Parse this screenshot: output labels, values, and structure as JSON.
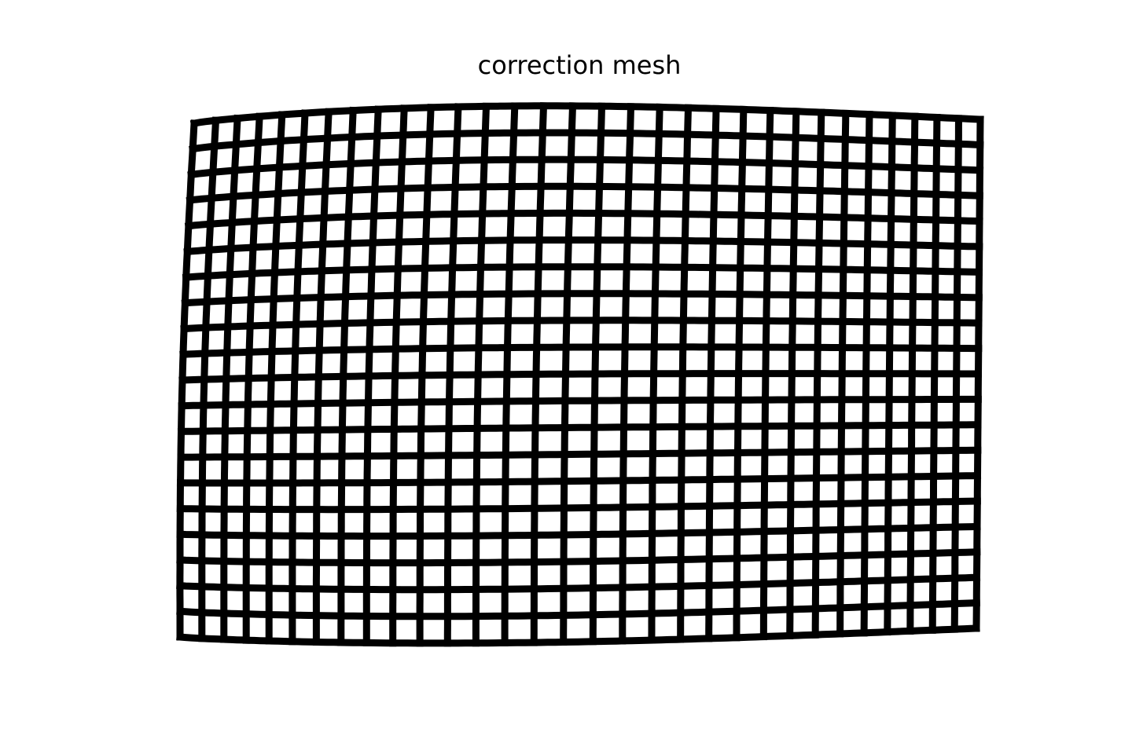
{
  "title": "correction mesh"
}
